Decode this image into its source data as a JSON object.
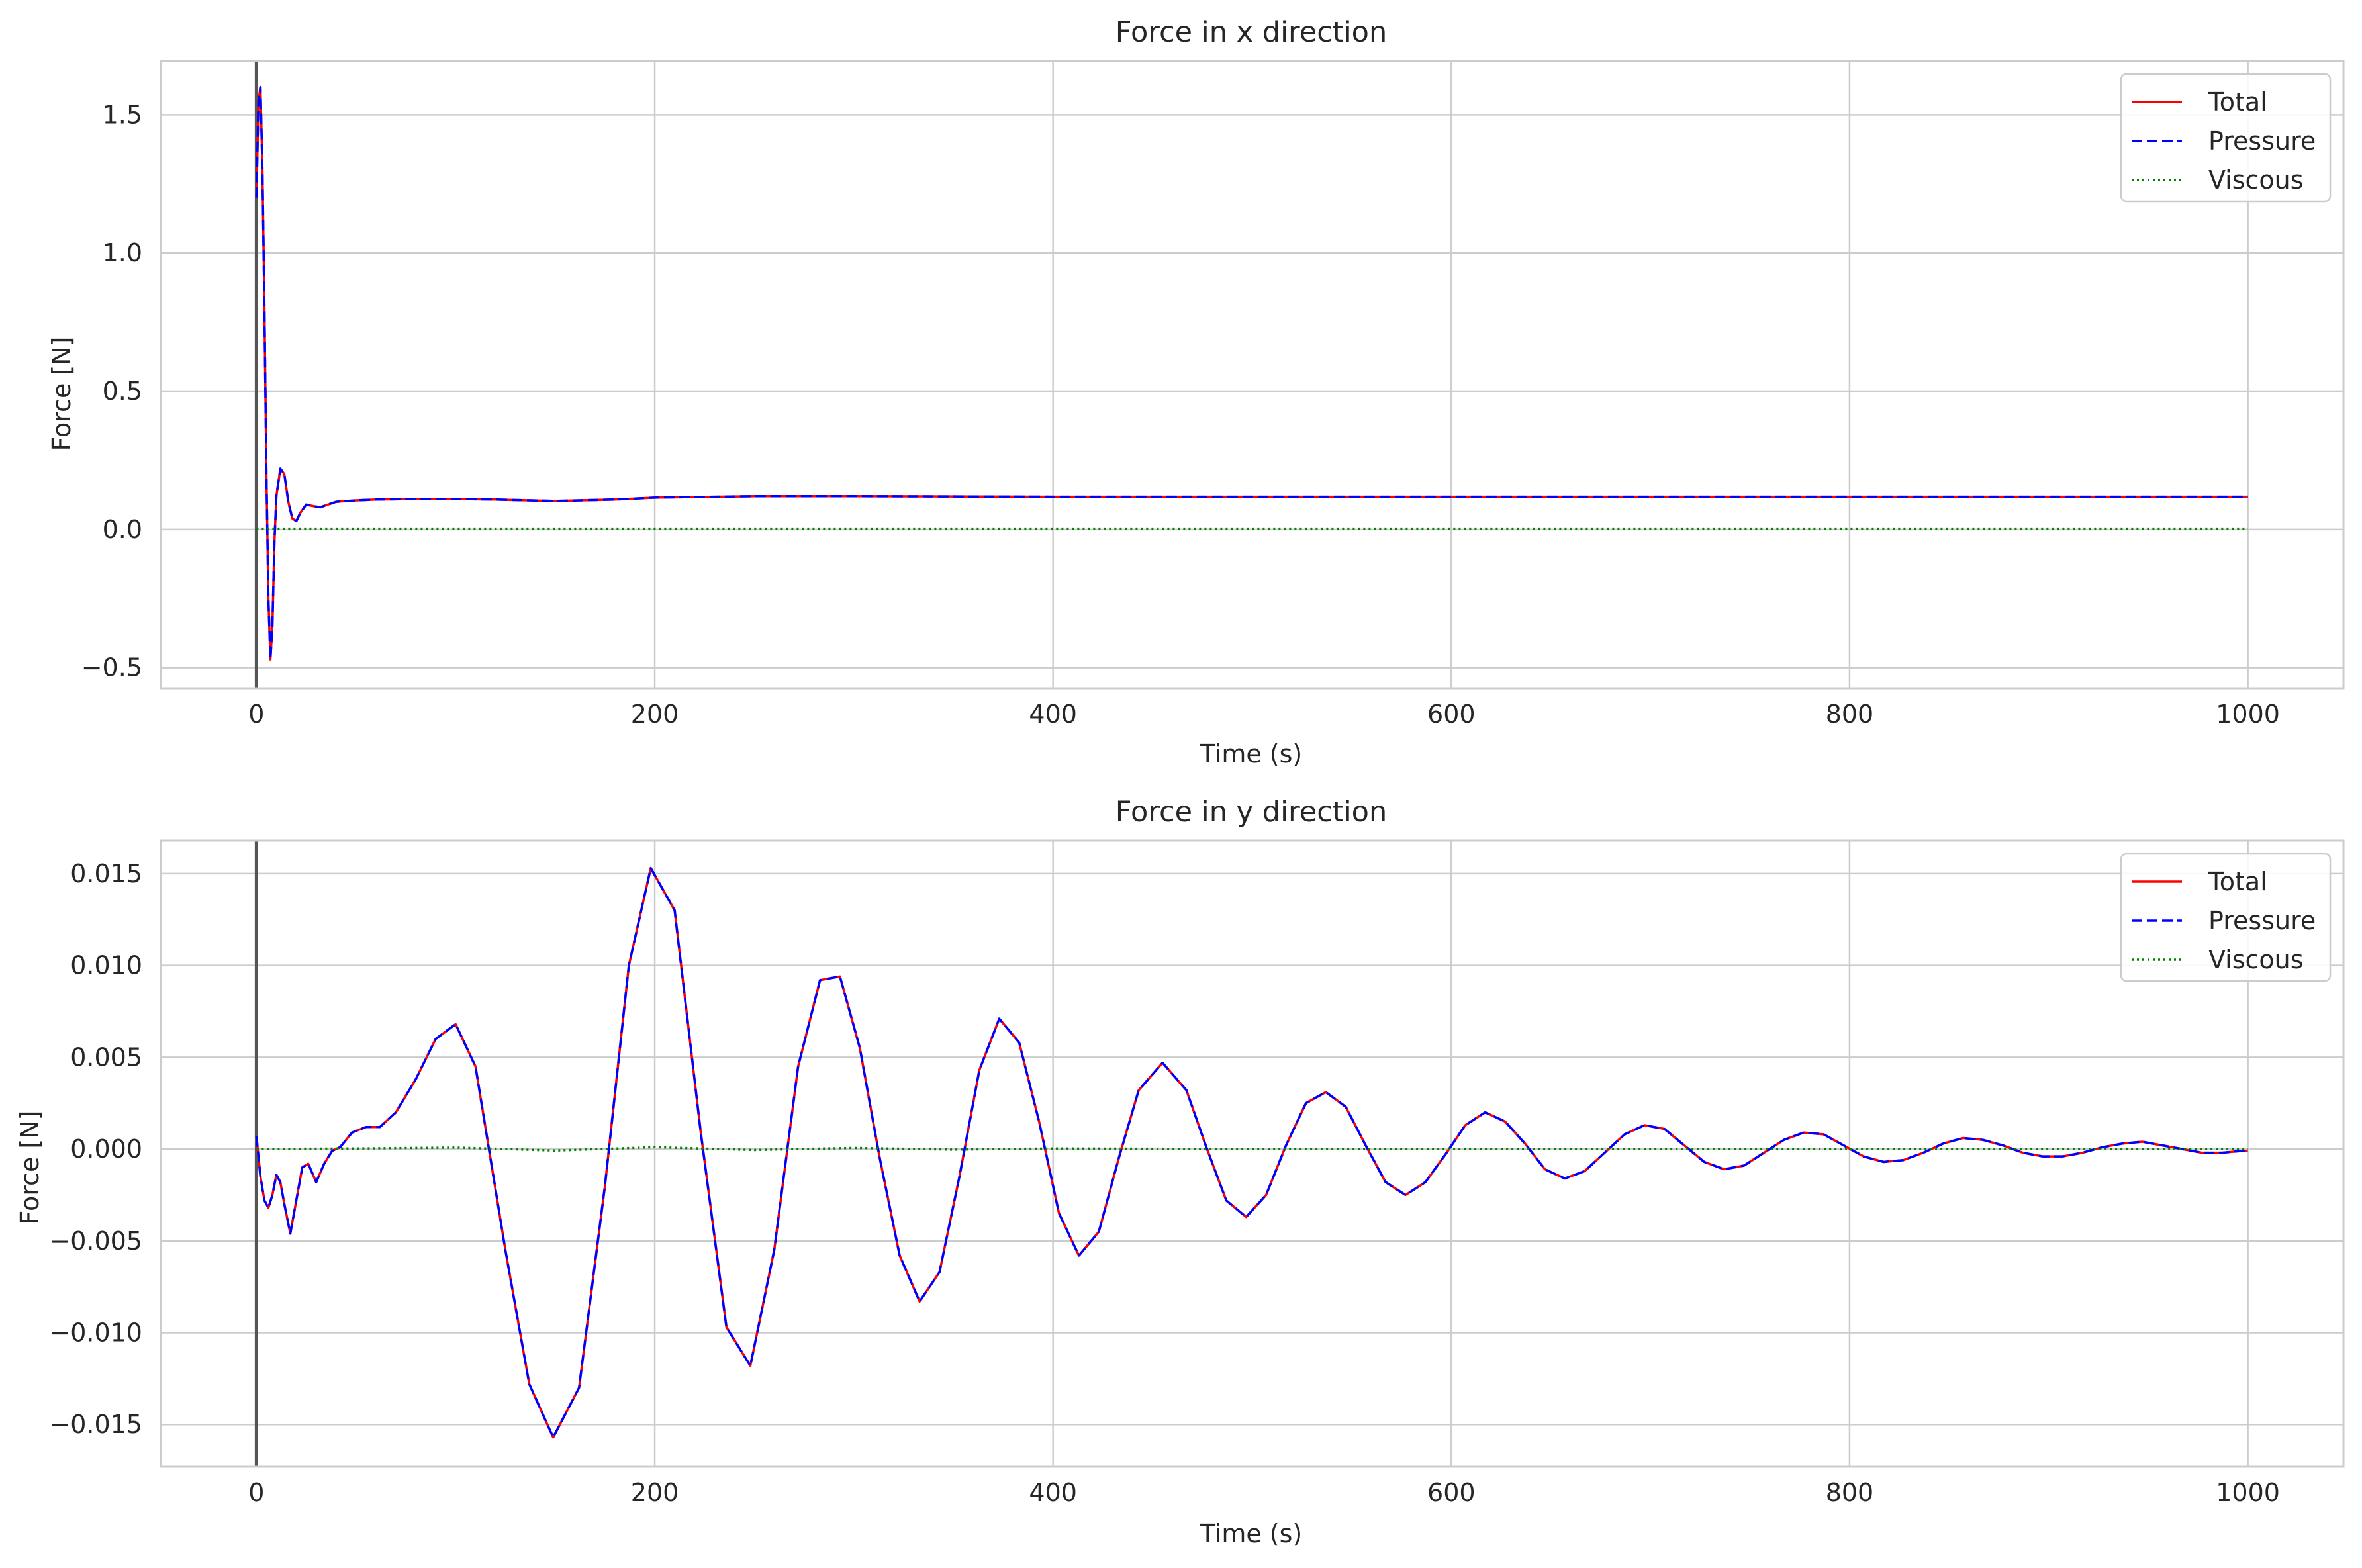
{
  "chart_data": [
    {
      "type": "line",
      "title": "Force in x direction",
      "xlabel": "Time (s)",
      "ylabel": "Force [N]",
      "xlim": [
        -48,
        1048
      ],
      "ylim": [
        -0.575,
        1.695
      ],
      "xticks": [
        0,
        200,
        400,
        600,
        800,
        1000
      ],
      "xtick_labels": [
        "0",
        "200",
        "400",
        "600",
        "800",
        "1000"
      ],
      "yticks": [
        -0.5,
        0.0,
        0.5,
        1.0,
        1.5
      ],
      "ytick_labels": [
        "−0.5",
        "0.0",
        "0.5",
        "1.0",
        "1.5"
      ],
      "grid": true,
      "legend_position": "top-right",
      "vline_x": 0,
      "series": [
        {
          "name": "Total",
          "color": "#ff0000",
          "style": "solid",
          "x": [
            0,
            1,
            2,
            3,
            4,
            5,
            6,
            7,
            8,
            9,
            10,
            12,
            14,
            16,
            18,
            20,
            22,
            25,
            28,
            32,
            36,
            40,
            50,
            60,
            80,
            100,
            120,
            150,
            180,
            200,
            250,
            300,
            400,
            500,
            600,
            700,
            800,
            900,
            1000
          ],
          "y": [
            1.2,
            1.55,
            1.6,
            1.3,
            0.8,
            0.2,
            -0.25,
            -0.47,
            -0.35,
            -0.05,
            0.12,
            0.22,
            0.2,
            0.1,
            0.04,
            0.03,
            0.06,
            0.09,
            0.085,
            0.08,
            0.09,
            0.1,
            0.105,
            0.108,
            0.11,
            0.11,
            0.108,
            0.103,
            0.108,
            0.115,
            0.12,
            0.12,
            0.118,
            0.118,
            0.118,
            0.118,
            0.118,
            0.118,
            0.118
          ]
        },
        {
          "name": "Pressure",
          "color": "#0000ff",
          "style": "dashed",
          "x": [
            0,
            1,
            2,
            3,
            4,
            5,
            6,
            7,
            8,
            9,
            10,
            12,
            14,
            16,
            18,
            20,
            22,
            25,
            28,
            32,
            36,
            40,
            50,
            60,
            80,
            100,
            120,
            150,
            180,
            200,
            250,
            300,
            400,
            500,
            600,
            700,
            800,
            900,
            1000
          ],
          "y": [
            1.2,
            1.55,
            1.6,
            1.3,
            0.8,
            0.2,
            -0.25,
            -0.47,
            -0.35,
            -0.05,
            0.12,
            0.22,
            0.2,
            0.1,
            0.04,
            0.03,
            0.06,
            0.09,
            0.085,
            0.08,
            0.09,
            0.1,
            0.105,
            0.108,
            0.11,
            0.11,
            0.108,
            0.103,
            0.108,
            0.115,
            0.12,
            0.12,
            0.118,
            0.118,
            0.118,
            0.118,
            0.118,
            0.118,
            0.118
          ]
        },
        {
          "name": "Viscous",
          "color": "#008000",
          "style": "dotted",
          "x": [
            0,
            100,
            200,
            300,
            400,
            500,
            600,
            700,
            800,
            900,
            1000
          ],
          "y": [
            0.003,
            0.003,
            0.003,
            0.003,
            0.003,
            0.003,
            0.003,
            0.003,
            0.003,
            0.003,
            0.003
          ]
        }
      ]
    },
    {
      "type": "line",
      "title": "Force in y direction",
      "xlabel": "Time (s)",
      "ylabel": "Force [N]",
      "xlim": [
        -48,
        1048
      ],
      "ylim": [
        -0.0173,
        0.0168
      ],
      "xticks": [
        0,
        200,
        400,
        600,
        800,
        1000
      ],
      "xtick_labels": [
        "0",
        "200",
        "400",
        "600",
        "800",
        "1000"
      ],
      "yticks": [
        -0.015,
        -0.01,
        -0.005,
        0.0,
        0.005,
        0.01,
        0.015
      ],
      "ytick_labels": [
        "−0.015",
        "−0.010",
        "−0.005",
        "0.000",
        "0.005",
        "0.010",
        "0.015"
      ],
      "grid": true,
      "legend_position": "top-right",
      "vline_x": 0,
      "series": [
        {
          "name": "Total",
          "color": "#ff0000",
          "style": "solid",
          "x": [
            0,
            2,
            4,
            6,
            8,
            10,
            12,
            14,
            17,
            20,
            23,
            26,
            30,
            34,
            38,
            42,
            48,
            55,
            62,
            70,
            80,
            90,
            100,
            110,
            125,
            137,
            149,
            162,
            175,
            187,
            198,
            210,
            223,
            236,
            248,
            260,
            272,
            283,
            293,
            303,
            313,
            323,
            333,
            343,
            353,
            363,
            373,
            383,
            393,
            403,
            413,
            423,
            433,
            443,
            455,
            467,
            477,
            487,
            497,
            507,
            517,
            527,
            537,
            547,
            557,
            567,
            577,
            587,
            597,
            607,
            617,
            627,
            637,
            647,
            657,
            667,
            677,
            687,
            697,
            707,
            717,
            727,
            737,
            747,
            757,
            767,
            777,
            787,
            797,
            807,
            817,
            827,
            837,
            847,
            857,
            867,
            877,
            887,
            897,
            907,
            917,
            927,
            937,
            947,
            957,
            967,
            977,
            987,
            997,
            1000
          ],
          "y": [
            0.0007,
            -0.0015,
            -0.0028,
            -0.0032,
            -0.0025,
            -0.0014,
            -0.0018,
            -0.003,
            -0.0046,
            -0.0028,
            -0.001,
            -0.0008,
            -0.0018,
            -0.0008,
            -0.0001,
            0.0001,
            0.0009,
            0.0012,
            0.0012,
            0.002,
            0.0038,
            0.006,
            0.0068,
            0.0045,
            -0.0055,
            -0.0128,
            -0.0157,
            -0.013,
            -0.002,
            0.01,
            0.0153,
            0.013,
            0.001,
            -0.0097,
            -0.0118,
            -0.0055,
            0.0045,
            0.0092,
            0.0094,
            0.0055,
            -0.0005,
            -0.0058,
            -0.0083,
            -0.0067,
            -0.0015,
            0.0043,
            0.0071,
            0.0058,
            0.0015,
            -0.0035,
            -0.0058,
            -0.0045,
            -0.0005,
            0.0032,
            0.0047,
            0.0032,
            0.0001,
            -0.0028,
            -0.0037,
            -0.0025,
            0.0002,
            0.0025,
            0.0031,
            0.0023,
            0.0002,
            -0.0018,
            -0.0025,
            -0.0018,
            -0.0003,
            0.0013,
            0.002,
            0.0015,
            0.0003,
            -0.0011,
            -0.0016,
            -0.0012,
            -0.0002,
            0.0008,
            0.0013,
            0.0011,
            0.0002,
            -0.0007,
            -0.0011,
            -0.0009,
            -0.0002,
            0.0005,
            0.0009,
            0.0008,
            0.0002,
            -0.0004,
            -0.0007,
            -0.0006,
            -0.0002,
            0.0003,
            0.0006,
            0.0005,
            0.0002,
            -0.0002,
            -0.0004,
            -0.0004,
            -0.0002,
            0.0001,
            0.0003,
            0.0004,
            0.0002,
            0.0,
            -0.0002,
            -0.0002,
            -0.0001,
            -0.0001
          ]
        },
        {
          "name": "Pressure",
          "color": "#0000ff",
          "style": "dashed",
          "x": [
            0,
            2,
            4,
            6,
            8,
            10,
            12,
            14,
            17,
            20,
            23,
            26,
            30,
            34,
            38,
            42,
            48,
            55,
            62,
            70,
            80,
            90,
            100,
            110,
            125,
            137,
            149,
            162,
            175,
            187,
            198,
            210,
            223,
            236,
            248,
            260,
            272,
            283,
            293,
            303,
            313,
            323,
            333,
            343,
            353,
            363,
            373,
            383,
            393,
            403,
            413,
            423,
            433,
            443,
            455,
            467,
            477,
            487,
            497,
            507,
            517,
            527,
            537,
            547,
            557,
            567,
            577,
            587,
            597,
            607,
            617,
            627,
            637,
            647,
            657,
            667,
            677,
            687,
            697,
            707,
            717,
            727,
            737,
            747,
            757,
            767,
            777,
            787,
            797,
            807,
            817,
            827,
            837,
            847,
            857,
            867,
            877,
            887,
            897,
            907,
            917,
            927,
            937,
            947,
            957,
            967,
            977,
            987,
            997,
            1000
          ],
          "y": [
            0.0007,
            -0.0015,
            -0.0028,
            -0.0032,
            -0.0025,
            -0.0014,
            -0.0018,
            -0.003,
            -0.0046,
            -0.0028,
            -0.001,
            -0.0008,
            -0.0018,
            -0.0008,
            -0.0001,
            0.0001,
            0.0009,
            0.0012,
            0.0012,
            0.002,
            0.0038,
            0.006,
            0.0068,
            0.0045,
            -0.0055,
            -0.0128,
            -0.0157,
            -0.013,
            -0.002,
            0.01,
            0.0153,
            0.013,
            0.001,
            -0.0097,
            -0.0118,
            -0.0055,
            0.0045,
            0.0092,
            0.0094,
            0.0055,
            -0.0005,
            -0.0058,
            -0.0083,
            -0.0067,
            -0.0015,
            0.0043,
            0.0071,
            0.0058,
            0.0015,
            -0.0035,
            -0.0058,
            -0.0045,
            -0.0005,
            0.0032,
            0.0047,
            0.0032,
            0.0001,
            -0.0028,
            -0.0037,
            -0.0025,
            0.0002,
            0.0025,
            0.0031,
            0.0023,
            0.0002,
            -0.0018,
            -0.0025,
            -0.0018,
            -0.0003,
            0.0013,
            0.002,
            0.0015,
            0.0003,
            -0.0011,
            -0.0016,
            -0.0012,
            -0.0002,
            0.0008,
            0.0013,
            0.0011,
            0.0002,
            -0.0007,
            -0.0011,
            -0.0009,
            -0.0002,
            0.0005,
            0.0009,
            0.0008,
            0.0002,
            -0.0004,
            -0.0007,
            -0.0006,
            -0.0002,
            0.0003,
            0.0006,
            0.0005,
            0.0002,
            -0.0002,
            -0.0004,
            -0.0004,
            -0.0002,
            0.0001,
            0.0003,
            0.0004,
            0.0002,
            0.0,
            -0.0002,
            -0.0002,
            -0.0001,
            -0.0001
          ]
        },
        {
          "name": "Viscous",
          "color": "#008000",
          "style": "dotted",
          "x": [
            0,
            50,
            100,
            150,
            200,
            250,
            300,
            350,
            400,
            500,
            600,
            700,
            800,
            900,
            1000
          ],
          "y": [
            0.0,
            3e-05,
            8e-05,
            -8e-05,
            0.0001,
            -5e-05,
            6e-05,
            -3e-05,
            3e-05,
            0.0,
            0.0,
            0.0,
            0.0,
            0.0,
            0.0
          ]
        }
      ]
    }
  ]
}
